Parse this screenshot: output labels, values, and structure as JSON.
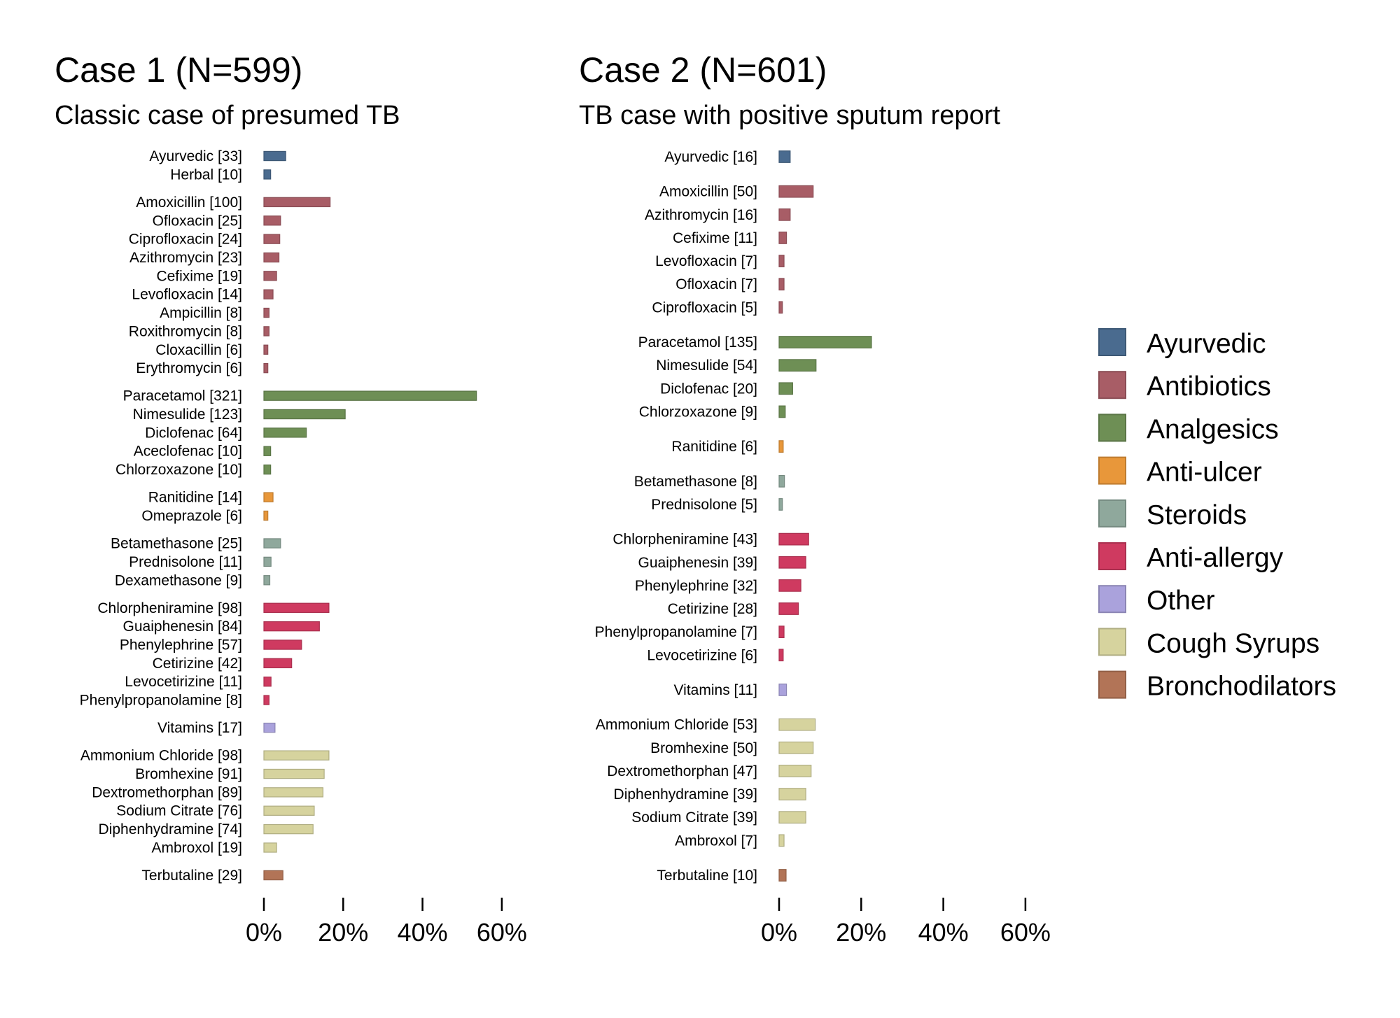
{
  "chart_data": [
    {
      "type": "bar",
      "orientation": "horizontal",
      "title": "Case 1 (N=599)",
      "subtitle": "Classic case of presumed TB",
      "xlim": [
        0,
        60
      ],
      "xticks": [
        "0%",
        "20%",
        "40%",
        "60%"
      ],
      "groups": [
        {
          "category": "Ayurvedic",
          "items": [
            {
              "label": "Ayurvedic [33]",
              "value": 5.5
            },
            {
              "label": "Herbal [10]",
              "value": 1.7
            }
          ]
        },
        {
          "category": "Antibiotics",
          "items": [
            {
              "label": "Amoxicillin [100]",
              "value": 16.7
            },
            {
              "label": "Ofloxacin [25]",
              "value": 4.2
            },
            {
              "label": "Ciprofloxacin [24]",
              "value": 4.0
            },
            {
              "label": "Azithromycin [23]",
              "value": 3.8
            },
            {
              "label": "Cefixime [19]",
              "value": 3.2
            },
            {
              "label": "Levofloxacin [14]",
              "value": 2.3
            },
            {
              "label": "Ampicillin [8]",
              "value": 1.3
            },
            {
              "label": "Roxithromycin [8]",
              "value": 1.3
            },
            {
              "label": "Cloxacillin [6]",
              "value": 1.0
            },
            {
              "label": "Erythromycin [6]",
              "value": 1.0
            }
          ]
        },
        {
          "category": "Analgesics",
          "items": [
            {
              "label": "Paracetamol [321]",
              "value": 53.6
            },
            {
              "label": "Nimesulide [123]",
              "value": 20.5
            },
            {
              "label": "Diclofenac [64]",
              "value": 10.7
            },
            {
              "label": "Aceclofenac [10]",
              "value": 1.7
            },
            {
              "label": "Chlorzoxazone [10]",
              "value": 1.7
            }
          ]
        },
        {
          "category": "Anti-ulcer",
          "items": [
            {
              "label": "Ranitidine [14]",
              "value": 2.3
            },
            {
              "label": "Omeprazole [6]",
              "value": 1.0
            }
          ]
        },
        {
          "category": "Steroids",
          "items": [
            {
              "label": "Betamethasone [25]",
              "value": 4.2
            },
            {
              "label": "Prednisolone [11]",
              "value": 1.8
            },
            {
              "label": "Dexamethasone [9]",
              "value": 1.5
            }
          ]
        },
        {
          "category": "Anti-allergy",
          "items": [
            {
              "label": "Chlorpheniramine [98]",
              "value": 16.4
            },
            {
              "label": "Guaiphenesin [84]",
              "value": 14.0
            },
            {
              "label": "Phenylephrine [57]",
              "value": 9.5
            },
            {
              "label": "Cetirizine [42]",
              "value": 7.0
            },
            {
              "label": "Levocetirizine [11]",
              "value": 1.8
            },
            {
              "label": "Phenylpropanolamine [8]",
              "value": 1.3
            }
          ]
        },
        {
          "category": "Other",
          "items": [
            {
              "label": "Vitamins [17]",
              "value": 2.8
            }
          ]
        },
        {
          "category": "Cough Syrups",
          "items": [
            {
              "label": "Ammonium Chloride [98]",
              "value": 16.4
            },
            {
              "label": "Bromhexine [91]",
              "value": 15.2
            },
            {
              "label": "Dextromethorphan [89]",
              "value": 14.9
            },
            {
              "label": "Sodium Citrate [76]",
              "value": 12.7
            },
            {
              "label": "Diphenhydramine [74]",
              "value": 12.4
            },
            {
              "label": "Ambroxol [19]",
              "value": 3.2
            }
          ]
        },
        {
          "category": "Bronchodilators",
          "items": [
            {
              "label": "Terbutaline [29]",
              "value": 4.8
            }
          ]
        }
      ]
    },
    {
      "type": "bar",
      "orientation": "horizontal",
      "title": "Case 2 (N=601)",
      "subtitle": "TB case with positive sputum report",
      "xlim": [
        0,
        60
      ],
      "xticks": [
        "0%",
        "20%",
        "40%",
        "60%"
      ],
      "groups": [
        {
          "category": "Ayurvedic",
          "items": [
            {
              "label": "Ayurvedic [16]",
              "value": 2.7
            }
          ]
        },
        {
          "category": "Antibiotics",
          "items": [
            {
              "label": "Amoxicillin [50]",
              "value": 8.3
            },
            {
              "label": "Azithromycin [16]",
              "value": 2.7
            },
            {
              "label": "Cefixime [11]",
              "value": 1.8
            },
            {
              "label": "Levofloxacin [7]",
              "value": 1.2
            },
            {
              "label": "Ofloxacin [7]",
              "value": 1.2
            },
            {
              "label": "Ciprofloxacin [5]",
              "value": 0.8
            }
          ]
        },
        {
          "category": "Analgesics",
          "items": [
            {
              "label": "Paracetamol [135]",
              "value": 22.5
            },
            {
              "label": "Nimesulide [54]",
              "value": 9.0
            },
            {
              "label": "Diclofenac [20]",
              "value": 3.3
            },
            {
              "label": "Chlorzoxazone [9]",
              "value": 1.5
            }
          ]
        },
        {
          "category": "Anti-ulcer",
          "items": [
            {
              "label": "Ranitidine [6]",
              "value": 1.0
            }
          ]
        },
        {
          "category": "Steroids",
          "items": [
            {
              "label": "Betamethasone [8]",
              "value": 1.3
            },
            {
              "label": "Prednisolone [5]",
              "value": 0.8
            }
          ]
        },
        {
          "category": "Anti-allergy",
          "items": [
            {
              "label": "Chlorpheniramine [43]",
              "value": 7.2
            },
            {
              "label": "Guaiphenesin [39]",
              "value": 6.5
            },
            {
              "label": "Phenylephrine [32]",
              "value": 5.3
            },
            {
              "label": "Cetirizine [28]",
              "value": 4.7
            },
            {
              "label": "Phenylpropanolamine [7]",
              "value": 1.2
            },
            {
              "label": "Levocetirizine [6]",
              "value": 1.0
            }
          ]
        },
        {
          "category": "Other",
          "items": [
            {
              "label": "Vitamins [11]",
              "value": 1.8
            }
          ]
        },
        {
          "category": "Cough Syrups",
          "items": [
            {
              "label": "Ammonium Chloride [53]",
              "value": 8.8
            },
            {
              "label": "Bromhexine [50]",
              "value": 8.3
            },
            {
              "label": "Dextromethorphan [47]",
              "value": 7.8
            },
            {
              "label": "Diphenhydramine [39]",
              "value": 6.5
            },
            {
              "label": "Sodium Citrate [39]",
              "value": 6.5
            },
            {
              "label": "Ambroxol [7]",
              "value": 1.2
            }
          ]
        },
        {
          "category": "Bronchodilators",
          "items": [
            {
              "label": "Terbutaline [10]",
              "value": 1.7
            }
          ]
        }
      ]
    }
  ],
  "legend": {
    "position": "right",
    "items": [
      {
        "label": "Ayurvedic",
        "color": "#4a6b8f"
      },
      {
        "label": "Antibiotics",
        "color": "#a85d66"
      },
      {
        "label": "Analgesics",
        "color": "#6e8f55"
      },
      {
        "label": "Anti-ulcer",
        "color": "#e8973a"
      },
      {
        "label": "Steroids",
        "color": "#8fa89c"
      },
      {
        "label": "Anti-allergy",
        "color": "#cf3a60"
      },
      {
        "label": "Other",
        "color": "#aaa2dc"
      },
      {
        "label": "Cough Syrups",
        "color": "#d6d39e"
      },
      {
        "label": "Bronchodilators",
        "color": "#b27457"
      }
    ]
  }
}
